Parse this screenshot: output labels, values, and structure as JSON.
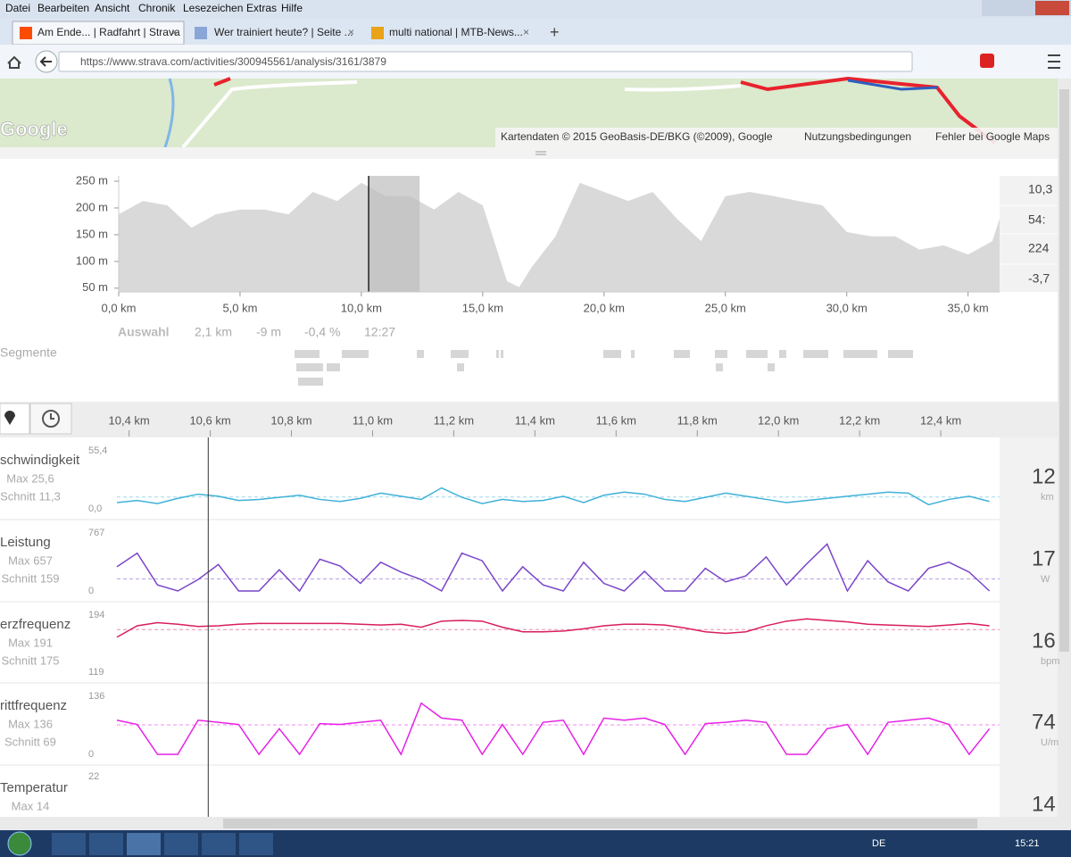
{
  "menu": [
    "Datei",
    "Bearbeiten",
    "Ansicht",
    "Chronik",
    "Lesezeichen",
    "Extras",
    "Hilfe"
  ],
  "tabs": [
    "Am Ende... | Radfahrt | Strava",
    "Wer trainiert heute? | Seite ...",
    "multi national | MTB-News..."
  ],
  "url": "https://www.strava.com/activities/300945561/analysis/3161/3879",
  "map": {
    "logo": "Google",
    "attribution": [
      "Kartendaten © 2015 GeoBasis-DE/BKG (©2009), Google",
      "Nutzungsbedingungen",
      "Fehler bei Google Maps"
    ]
  },
  "elevation": {
    "xlim": [
      0,
      36.3
    ],
    "ylim": [
      43,
      260
    ],
    "xticks": [
      {
        "value": 0,
        "label": "0,0 km"
      },
      {
        "value": 5,
        "label": "5,0 km"
      },
      {
        "value": 10,
        "label": "10,0 km"
      },
      {
        "value": 15,
        "label": "15,0 km"
      },
      {
        "value": 20,
        "label": "20,0 km"
      },
      {
        "value": 25,
        "label": "25,0 km"
      },
      {
        "value": 30,
        "label": "30,0 km"
      },
      {
        "value": 35,
        "label": "35,0 km"
      }
    ],
    "yticks": [
      {
        "value": 250,
        "label": "250 m"
      },
      {
        "value": 200,
        "label": "200 m"
      },
      {
        "value": 150,
        "label": "150 m"
      },
      {
        "value": 100,
        "label": "100 m"
      },
      {
        "value": 50,
        "label": "50 m"
      }
    ],
    "x": [
      0,
      1,
      2,
      3,
      4,
      5,
      6,
      7,
      8,
      9,
      10,
      11,
      12,
      13,
      14,
      15,
      16,
      16.5,
      17,
      18,
      19,
      20,
      21,
      22,
      23,
      24,
      25,
      26,
      27,
      28,
      29,
      30,
      31,
      32,
      33,
      34,
      35,
      36,
      36.3
    ],
    "values": [
      188,
      213,
      205,
      163,
      188,
      197,
      197,
      188,
      230,
      213,
      247,
      222,
      222,
      197,
      230,
      205,
      63,
      52,
      88,
      147,
      247,
      230,
      213,
      230,
      180,
      138,
      222,
      230,
      222,
      213,
      205,
      155,
      147,
      147,
      122,
      130,
      113,
      138,
      180
    ],
    "selection": [
      10.3,
      12.4
    ],
    "stats": [
      "10,3",
      "54:",
      "224",
      "-3,7"
    ]
  },
  "selection": {
    "label": "Auswahl",
    "values": [
      "2,1 km",
      "-9 m",
      "-0,4 %",
      "12:27"
    ]
  },
  "segments_label": "Segmente",
  "zoom": {
    "xlim": [
      10.37,
      12.545
    ],
    "xticks": [
      {
        "value": 10.4,
        "label": "10,4 km"
      },
      {
        "value": 10.6,
        "label": "10,6 km"
      },
      {
        "value": 10.8,
        "label": "10,8 km"
      },
      {
        "value": 11.0,
        "label": "11,0 km"
      },
      {
        "value": 11.2,
        "label": "11,2 km"
      },
      {
        "value": 11.4,
        "label": "11,4 km"
      },
      {
        "value": 11.6,
        "label": "11,6 km"
      },
      {
        "value": 11.8,
        "label": "11,8 km"
      },
      {
        "value": 12.0,
        "label": "12,0 km"
      },
      {
        "value": 12.2,
        "label": "12,2 km"
      },
      {
        "value": 12.4,
        "label": "12,4 km"
      }
    ],
    "cursor": 10.595,
    "x": [
      10.37,
      10.42,
      10.47,
      10.52,
      10.57,
      10.62,
      10.67,
      10.72,
      10.77,
      10.82,
      10.87,
      10.92,
      10.97,
      11.02,
      11.07,
      11.12,
      11.17,
      11.22,
      11.27,
      11.32,
      11.37,
      11.42,
      11.47,
      11.52,
      11.57,
      11.62,
      11.67,
      11.72,
      11.77,
      11.82,
      11.87,
      11.92,
      11.97,
      12.02,
      12.07,
      12.12,
      12.17,
      12.22,
      12.27,
      12.32,
      12.37,
      12.42,
      12.47,
      12.52
    ]
  },
  "streams": [
    {
      "name": "schwindigkeit",
      "max": "Max 25,6",
      "avg": {
        "value": 11.3,
        "label": "Schnitt 11,3"
      },
      "current": "12",
      "unit": "km",
      "color": "#3fb1d8",
      "ylim": [
        0,
        55.4
      ],
      "yticks": [
        {
          "value": 55.4,
          "label": "55,4"
        },
        {
          "value": 0,
          "label": "0,0"
        }
      ],
      "values": [
        6,
        8,
        5,
        10,
        14,
        12,
        8,
        9,
        11,
        13,
        9,
        7,
        10,
        15,
        12,
        9,
        20,
        11,
        5,
        9,
        7,
        8,
        12,
        6,
        13,
        16,
        14,
        9,
        7,
        11,
        15,
        12,
        9,
        6,
        8,
        10,
        12,
        14,
        16,
        15,
        4,
        9,
        12,
        7
      ]
    },
    {
      "name": "Leistung",
      "max": "Max 657",
      "avg": {
        "value": 159,
        "label": "Schnitt 159"
      },
      "current": "17",
      "unit": "W",
      "color": "#7a45c9",
      "ylim": [
        0,
        767
      ],
      "yticks": [
        767,
        0
      ],
      "values": [
        320,
        500,
        80,
        0,
        150,
        350,
        0,
        0,
        280,
        0,
        420,
        330,
        100,
        380,
        250,
        150,
        0,
        500,
        400,
        0,
        320,
        80,
        0,
        380,
        100,
        0,
        260,
        0,
        0,
        300,
        120,
        200,
        450,
        80,
        360,
        620,
        0,
        400,
        120,
        0,
        300,
        380,
        250,
        0
      ]
    },
    {
      "name": "erzfrequenz",
      "max": "Max 191",
      "avg": {
        "value": 175,
        "label": "Schnitt 175"
      },
      "current": "16",
      "unit": "bpm",
      "color": "#d81e5b",
      "ylim": [
        119,
        194
      ],
      "yticks": [
        194,
        119
      ],
      "values": [
        165,
        180,
        184,
        182,
        179,
        180,
        182,
        183,
        183,
        183,
        183,
        183,
        182,
        181,
        182,
        178,
        186,
        187,
        186,
        178,
        172,
        172,
        173,
        176,
        180,
        182,
        182,
        181,
        177,
        172,
        170,
        172,
        180,
        186,
        189,
        187,
        185,
        182,
        181,
        180,
        179,
        181,
        183,
        180
      ]
    },
    {
      "name": "rittfrequenz",
      "max": "Max 136",
      "avg": {
        "value": 69,
        "label": "Schnitt 69"
      },
      "current": "74",
      "unit": "U/m",
      "color": "#e620e6",
      "ylim": [
        0,
        136
      ],
      "yticks": [
        136,
        0
      ],
      "values": [
        80,
        70,
        0,
        0,
        80,
        75,
        70,
        0,
        60,
        0,
        72,
        70,
        75,
        80,
        0,
        120,
        85,
        80,
        0,
        70,
        0,
        75,
        80,
        0,
        85,
        80,
        85,
        70,
        0,
        72,
        75,
        80,
        75,
        0,
        0,
        60,
        70,
        0,
        75,
        80,
        85,
        70,
        0,
        60
      ]
    },
    {
      "name": "Temperatur",
      "max": "Max 14",
      "current": "14",
      "yticks": [
        22
      ]
    }
  ],
  "taskbar": {
    "language": "DE",
    "time": "15:21"
  }
}
